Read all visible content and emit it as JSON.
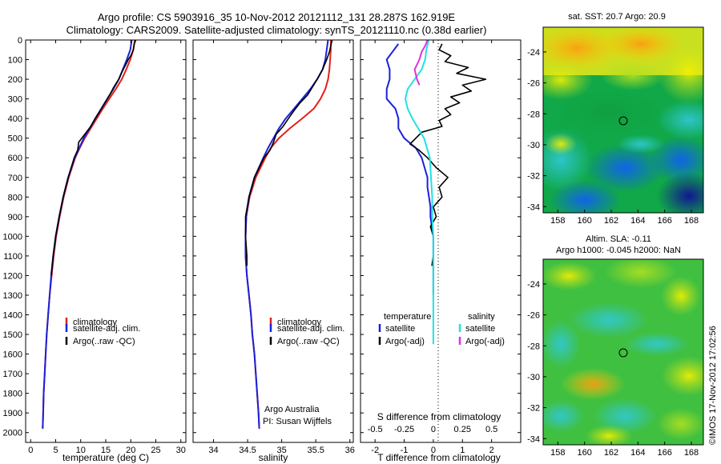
{
  "header": {
    "title_line1": "Argo profile: CS 5903916_35 10-Nov-2012 20121112_131 28.287S 162.919E",
    "title_line2": "Climatology: CARS2009. Satellite-adjusted climatology: synTS_20121110.nc (0.38d earlier)"
  },
  "colors": {
    "climatology": "#e0201c",
    "satellite": "#1a22d8",
    "argo": "#000000",
    "s_satellite": "#22e0e6",
    "s_argo": "#e030e0"
  },
  "chart_data": [
    {
      "id": "temperature",
      "type": "line",
      "xlabel": "temperature (deg C)",
      "ylabel": "",
      "xlim": [
        -1,
        31
      ],
      "ylim": [
        2050,
        0
      ],
      "xticks": [
        "0",
        "5",
        "10",
        "15",
        "20",
        "25",
        "30"
      ],
      "yticks": [
        "0",
        "100",
        "200",
        "300",
        "400",
        "500",
        "600",
        "700",
        "800",
        "900",
        "1000",
        "1100",
        "1200",
        "1300",
        "1400",
        "1500",
        "1600",
        "1700",
        "1800",
        "1900",
        "2000"
      ],
      "legend": {
        "position": "lower-right",
        "entries": [
          "climatology",
          "satellite-adj. clim.",
          "Argo(..raw -QC)"
        ]
      },
      "series": [
        {
          "name": "climatology",
          "color_key": "climatology",
          "depth": [
            0,
            50,
            100,
            150,
            200,
            250,
            300,
            350,
            400,
            450,
            500,
            550,
            600,
            700,
            800,
            900,
            1000,
            1100,
            1200,
            1300,
            1400,
            1500,
            1600,
            1700,
            1800,
            1900,
            1980
          ],
          "values": [
            20.8,
            20.5,
            19.9,
            19.1,
            18.2,
            17.0,
            15.7,
            14.4,
            13.2,
            12.0,
            10.8,
            9.8,
            8.9,
            7.6,
            6.6,
            5.8,
            5.1,
            4.6,
            4.2,
            3.8,
            3.5,
            3.2,
            3.0,
            2.8,
            2.6,
            2.5,
            2.4
          ]
        },
        {
          "name": "satellite-adj. clim.",
          "color_key": "satellite",
          "depth": [
            0,
            50,
            100,
            150,
            200,
            250,
            300,
            350,
            400,
            450,
            500,
            550,
            600,
            700,
            800,
            900,
            1000,
            1100,
            1200,
            1300,
            1400,
            1500,
            1600,
            1700,
            1800,
            1900,
            1980
          ],
          "values": [
            20.2,
            19.9,
            19.2,
            18.4,
            17.6,
            16.5,
            15.3,
            14.1,
            12.9,
            11.8,
            10.6,
            9.7,
            8.8,
            7.5,
            6.5,
            5.7,
            5.0,
            4.5,
            4.1,
            3.8,
            3.5,
            3.2,
            3.0,
            2.8,
            2.6,
            2.5,
            2.4
          ]
        },
        {
          "name": "Argo(..raw -QC)",
          "color_key": "argo",
          "depth": [
            0,
            20,
            50,
            80,
            100,
            130,
            160,
            200,
            240,
            280,
            320,
            360,
            400,
            440,
            480,
            520,
            560,
            600,
            700,
            800,
            900,
            1000,
            1100,
            1200
          ],
          "values": [
            21.0,
            20.7,
            20.5,
            20.0,
            19.5,
            18.9,
            18.3,
            17.6,
            16.6,
            15.8,
            14.8,
            13.9,
            12.9,
            12.0,
            10.8,
            9.6,
            9.4,
            8.7,
            7.5,
            6.5,
            5.7,
            5.0,
            4.5,
            4.1
          ]
        }
      ]
    },
    {
      "id": "salinity",
      "type": "line",
      "xlabel": "salinity",
      "ylabel": "",
      "xlim": [
        33.7,
        36.05
      ],
      "ylim": [
        2050,
        0
      ],
      "xticks": [
        "34",
        "34.5",
        "35",
        "35.5",
        "36"
      ],
      "legend": {
        "position": "lower-right",
        "entries": [
          "climatology",
          "satellite-adj. clim.",
          "Argo(..raw -QC)"
        ]
      },
      "annotation": [
        "Argo Australia",
        "PI: Susan Wijffels"
      ],
      "series": [
        {
          "name": "climatology",
          "color_key": "climatology",
          "depth": [
            0,
            50,
            100,
            150,
            200,
            250,
            300,
            350,
            400,
            450,
            500,
            550,
            600,
            700,
            800,
            900,
            1000,
            1100,
            1200,
            1300,
            1400,
            1500,
            1600,
            1700,
            1800,
            1900,
            1980
          ],
          "values": [
            35.72,
            35.72,
            35.71,
            35.7,
            35.68,
            35.64,
            35.57,
            35.47,
            35.3,
            35.12,
            34.96,
            34.84,
            34.76,
            34.62,
            34.53,
            34.48,
            34.47,
            34.47,
            34.49,
            34.52,
            34.55,
            34.57,
            34.6,
            34.62,
            34.64,
            34.66,
            34.67
          ]
        },
        {
          "name": "satellite-adj. clim.",
          "color_key": "satellite",
          "depth": [
            0,
            50,
            100,
            150,
            200,
            250,
            300,
            350,
            400,
            450,
            500,
            550,
            600,
            700,
            800,
            900,
            1000,
            1100,
            1200,
            1300,
            1400,
            1500,
            1600,
            1700,
            1800,
            1900,
            1980
          ],
          "values": [
            35.68,
            35.66,
            35.64,
            35.6,
            35.52,
            35.42,
            35.3,
            35.18,
            35.06,
            34.96,
            34.88,
            34.8,
            34.73,
            34.6,
            34.52,
            34.48,
            34.47,
            34.47,
            34.49,
            34.52,
            34.55,
            34.57,
            34.6,
            34.62,
            34.64,
            34.66,
            34.67
          ]
        },
        {
          "name": "Argo(..raw -QC)",
          "color_key": "argo",
          "depth": [
            0,
            30,
            60,
            100,
            150,
            200,
            240,
            280,
            320,
            360,
            400,
            440,
            480,
            520,
            560,
            600,
            700,
            800,
            900,
            1000,
            1100,
            1150
          ],
          "values": [
            35.74,
            35.72,
            35.7,
            35.66,
            35.6,
            35.52,
            35.45,
            35.38,
            35.27,
            35.18,
            35.1,
            35.02,
            34.92,
            34.88,
            34.83,
            34.74,
            34.6,
            34.52,
            34.47,
            34.47,
            34.49,
            34.49
          ]
        }
      ]
    },
    {
      "id": "difference",
      "type": "line",
      "xlabel": "T difference from climatology",
      "x2label": "S difference from climatology",
      "xlim": [
        -2.5,
        3
      ],
      "x2lim": [
        -0.625,
        0.75
      ],
      "ylim": [
        2050,
        0
      ],
      "xticks": [
        "-2",
        "-1",
        "0",
        "1",
        "2"
      ],
      "x2ticks": [
        "-0.5",
        "-0.25",
        "0",
        "0.25",
        "0.5"
      ],
      "legend": {
        "position": "lower",
        "temperature_title": "temperature",
        "salinity_title": "salinity",
        "entries": [
          "satellite",
          "Argo(-adj)",
          "satellite",
          "Argo(-adj)"
        ]
      },
      "series": [
        {
          "name": "T satellite",
          "color_key": "satellite",
          "axis": "T",
          "depth": [
            20,
            60,
            100,
            150,
            200,
            250,
            300,
            350,
            400,
            450,
            500,
            550,
            600,
            650,
            700,
            750,
            800,
            850,
            900,
            950,
            1000,
            1100,
            1200,
            1300
          ],
          "values": [
            -1.2,
            -1.4,
            -1.6,
            -1.5,
            -1.5,
            -1.6,
            -1.6,
            -1.3,
            -1.2,
            -1.2,
            -1.0,
            -0.6,
            -0.4,
            -0.3,
            -0.2,
            -0.2,
            -0.15,
            -0.1,
            -0.1,
            -0.05,
            0,
            0,
            0,
            0
          ]
        },
        {
          "name": "T Argo(-adj)",
          "color_key": "argo",
          "axis": "T",
          "depth": [
            20,
            50,
            80,
            110,
            140,
            170,
            200,
            230,
            260,
            290,
            320,
            350,
            380,
            410,
            440,
            470,
            500,
            530,
            560,
            600,
            650,
            700,
            750,
            800,
            850,
            900,
            950,
            1000,
            1100,
            1150
          ],
          "values": [
            0.3,
            0.2,
            0.6,
            0.4,
            1.2,
            0.8,
            1.8,
            1.0,
            1.3,
            0.6,
            0.9,
            0.4,
            0.6,
            0.2,
            0.3,
            -0.4,
            -0.6,
            -0.8,
            -0.5,
            -0.2,
            0.1,
            0.5,
            0.2,
            0.3,
            0.0,
            0.1,
            -0.1,
            0.0,
            0.0,
            -0.05
          ]
        },
        {
          "name": "S satellite",
          "color_key": "s_satellite",
          "axis": "S",
          "depth": [
            0,
            50,
            100,
            150,
            200,
            250,
            300,
            350,
            400,
            450,
            500,
            600,
            700,
            800,
            900,
            1000,
            1100,
            1200,
            1300,
            1400,
            1500,
            1550
          ],
          "values": [
            -0.04,
            -0.06,
            -0.07,
            -0.1,
            -0.16,
            -0.22,
            -0.24,
            -0.22,
            -0.18,
            -0.13,
            -0.08,
            -0.03,
            -0.02,
            -0.01,
            -0.01,
            0,
            0,
            0,
            0,
            0,
            0,
            0
          ]
        },
        {
          "name": "S Argo(-adj)",
          "color_key": "s_argo",
          "axis": "S",
          "depth": [
            0,
            30,
            60,
            100,
            150,
            200,
            230
          ],
          "values": [
            -0.05,
            -0.07,
            -0.1,
            -0.12,
            -0.16,
            -0.14,
            -0.12
          ]
        }
      ]
    }
  ],
  "maps": {
    "sst": {
      "title": "sat. SST: 20.7  Argo: 20.9",
      "xticks": [
        "158",
        "160",
        "162",
        "164",
        "166",
        "168"
      ],
      "yticks": [
        "-24",
        "-26",
        "-28",
        "-30",
        "-32",
        "-34"
      ]
    },
    "sla": {
      "title_line1": "Altim. SLA: -0.11",
      "title_line2": "Argo h1000: -0.045 h2000: NaN",
      "xticks": [
        "158",
        "160",
        "162",
        "164",
        "166",
        "168"
      ],
      "yticks": [
        "-24",
        "-26",
        "-28",
        "-30",
        "-32",
        "-34"
      ]
    }
  },
  "footer": {
    "vertical_stamp": "©IMOS 17-Nov-2012 17:02:56"
  }
}
